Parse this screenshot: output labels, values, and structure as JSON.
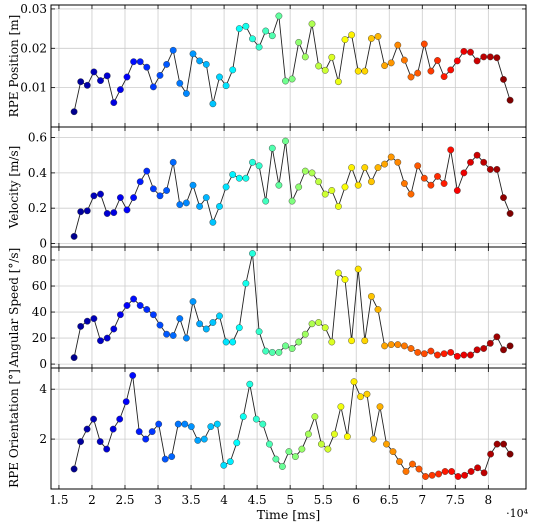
{
  "chart_data": [
    {
      "type": "line",
      "ylabel": "RPE Position [m]",
      "ylim": [
        0,
        0.031
      ],
      "yticks": [
        0.01,
        0.02,
        0.03
      ],
      "ytick_labels": [
        "0.01",
        "0.02",
        "0.03"
      ],
      "series": [
        {
          "values": [
            0.0039,
            0.0115,
            0.0106,
            0.014,
            0.0118,
            0.013,
            0.0062,
            0.0095,
            0.0127,
            0.0166,
            0.0166,
            0.0152,
            0.0102,
            0.0131,
            0.0159,
            0.0195,
            0.0111,
            0.0085,
            0.0186,
            0.0168,
            0.0159,
            0.0059,
            0.0127,
            0.0105,
            0.0145,
            0.025,
            0.0256,
            0.0224,
            0.0203,
            0.0244,
            0.0232,
            0.0282,
            0.0117,
            0.0122,
            0.0215,
            0.0178,
            0.0262,
            0.0155,
            0.0144,
            0.0177,
            0.0115,
            0.0222,
            0.0234,
            0.0142,
            0.0142,
            0.0225,
            0.023,
            0.0156,
            0.0163,
            0.0208,
            0.017,
            0.0127,
            0.0137,
            0.0211,
            0.0142,
            0.0169,
            0.0128,
            0.0145,
            0.0168,
            0.0192,
            0.019,
            0.0168,
            0.0178,
            0.0178,
            0.0176,
            0.0121,
            0.0068
          ]
        }
      ]
    },
    {
      "type": "line",
      "ylabel": "Velocity [m/s]",
      "ylim": [
        -0.02,
        0.66
      ],
      "yticks": [
        0,
        0.2,
        0.4,
        0.6
      ],
      "ytick_labels": [
        "0",
        "0.2",
        "0.4",
        "0.6"
      ],
      "series": [
        {
          "values": [
            0.04,
            0.18,
            0.185,
            0.27,
            0.28,
            0.17,
            0.175,
            0.26,
            0.19,
            0.26,
            0.35,
            0.41,
            0.31,
            0.27,
            0.3,
            0.46,
            0.22,
            0.23,
            0.33,
            0.21,
            0.26,
            0.12,
            0.21,
            0.32,
            0.39,
            0.37,
            0.37,
            0.46,
            0.44,
            0.24,
            0.54,
            0.33,
            0.58,
            0.24,
            0.32,
            0.41,
            0.4,
            0.35,
            0.28,
            0.3,
            0.21,
            0.32,
            0.43,
            0.33,
            0.43,
            0.35,
            0.43,
            0.45,
            0.49,
            0.46,
            0.34,
            0.28,
            0.44,
            0.37,
            0.33,
            0.38,
            0.34,
            0.53,
            0.3,
            0.4,
            0.46,
            0.5,
            0.46,
            0.42,
            0.42,
            0.26,
            0.17
          ]
        }
      ]
    },
    {
      "type": "line",
      "ylabel": "Angular Speed [°/s]",
      "ylim": [
        -3,
        90
      ],
      "yticks": [
        0,
        20,
        40,
        60,
        80
      ],
      "ytick_labels": [
        "0",
        "20",
        "40",
        "60",
        "80"
      ],
      "series": [
        {
          "values": [
            5,
            29,
            33,
            35,
            18,
            20,
            27,
            38,
            45,
            50,
            45,
            42,
            38,
            30,
            23,
            22,
            35,
            20,
            48,
            31,
            27,
            32,
            37,
            17,
            17,
            28,
            62,
            85,
            25,
            10,
            9,
            9,
            14,
            12,
            17,
            23,
            31,
            32,
            28,
            17,
            70,
            65,
            18,
            73,
            18,
            52,
            42,
            14,
            15,
            15,
            14,
            12,
            9,
            8,
            10,
            7,
            8,
            9,
            6,
            7,
            7,
            11,
            12,
            16,
            21,
            11,
            14
          ]
        }
      ]
    },
    {
      "type": "line",
      "ylabel": "RPE Orientation [°]",
      "xlabel": "Time [ms]",
      "x_multiplier": "·10⁴",
      "ylim": [
        0,
        4.85
      ],
      "yticks": [
        2,
        4
      ],
      "ytick_labels": [
        "2",
        "4"
      ],
      "xlim": [
        1.38,
        8.57
      ],
      "xticks": [
        1.5,
        2,
        2.5,
        3,
        3.5,
        4,
        4.5,
        5,
        5.5,
        6,
        6.5,
        7,
        7.5,
        8
      ],
      "xtick_labels": [
        "1.5",
        "2",
        "2.5",
        "3",
        "3.5",
        "4",
        "4.5",
        "5",
        "5.5",
        "6",
        "6.5",
        "7",
        "7.5",
        "8"
      ],
      "series": [
        {
          "values": [
            0.8,
            1.9,
            2.4,
            2.8,
            1.9,
            1.6,
            2.4,
            2.8,
            3.5,
            4.55,
            2.3,
            2.0,
            2.3,
            2.6,
            1.2,
            1.3,
            2.6,
            2.6,
            2.5,
            1.95,
            2.0,
            2.5,
            2.6,
            0.95,
            1.1,
            1.85,
            2.9,
            4.2,
            2.8,
            2.6,
            1.8,
            1.2,
            0.9,
            1.5,
            1.3,
            1.6,
            2.2,
            2.9,
            1.8,
            1.6,
            2.2,
            3.3,
            2.1,
            4.3,
            3.7,
            3.8,
            2.0,
            3.3,
            1.8,
            1.5,
            1.1,
            0.7,
            1.0,
            0.8,
            0.5,
            0.55,
            0.6,
            0.7,
            0.7,
            0.5,
            0.55,
            0.7,
            0.85,
            0.65,
            1.4,
            1.8,
            1.8,
            1.4
          ]
        }
      ],
      "x_values_by_index": "x from 1.73 to 8.33 (×10⁴ ms), evenly spaced"
    }
  ],
  "x_start": 1.73,
  "x_end": 8.33,
  "colors": {
    "line": "#222222",
    "grid": "#cccccc",
    "frame": "#000000",
    "jet_scale": [
      "#00008f",
      "#0000ff",
      "#0080ff",
      "#00ffff",
      "#80ff80",
      "#ffff00",
      "#ff8000",
      "#ff0000",
      "#800000"
    ]
  }
}
